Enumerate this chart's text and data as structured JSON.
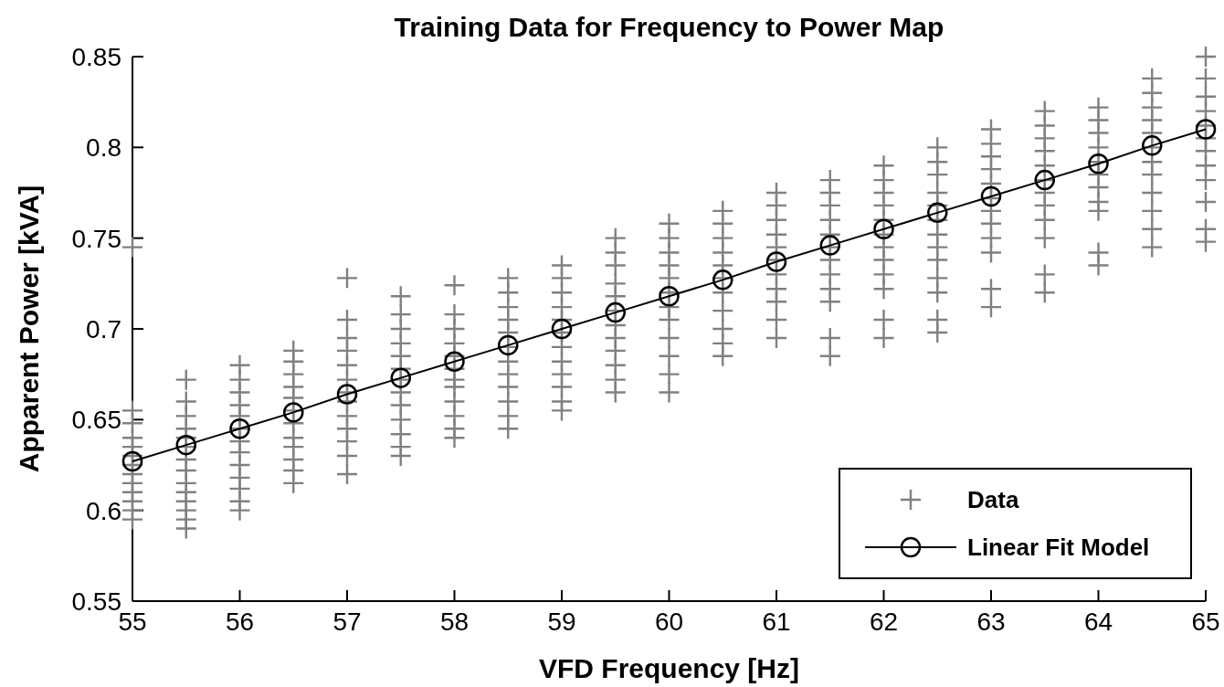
{
  "chart_data": {
    "type": "scatter",
    "title": "Training Data for Frequency to Power Map",
    "xlabel": "VFD Frequency [Hz]",
    "ylabel": "Apparent Power [kVA]",
    "xlim": [
      55,
      65
    ],
    "xticks": [
      55,
      56,
      57,
      58,
      59,
      60,
      61,
      62,
      63,
      64,
      65
    ],
    "ylim": [
      0.55,
      0.85
    ],
    "yticks": [
      0.55,
      0.6,
      0.65,
      0.7,
      0.75,
      0.8,
      0.85
    ],
    "grid": false,
    "legend": "bottom right",
    "series": [
      {
        "name": "Data",
        "marker": "cross",
        "color": "#808080",
        "x": [
          55,
          55,
          55,
          55,
          55,
          55,
          55,
          55,
          55,
          55,
          55,
          55,
          55,
          55.5,
          55.5,
          55.5,
          55.5,
          55.5,
          55.5,
          55.5,
          55.5,
          55.5,
          55.5,
          55.5,
          55.5,
          55.5,
          55.5,
          56,
          56,
          56,
          56,
          56,
          56,
          56,
          56,
          56,
          56,
          56,
          56,
          56,
          56.5,
          56.5,
          56.5,
          56.5,
          56.5,
          56.5,
          56.5,
          56.5,
          56.5,
          56.5,
          56.5,
          56.5,
          57,
          57,
          57,
          57,
          57,
          57,
          57,
          57,
          57,
          57,
          57,
          57,
          57,
          57.5,
          57.5,
          57.5,
          57.5,
          57.5,
          57.5,
          57.5,
          57.5,
          57.5,
          57.5,
          57.5,
          57.5,
          57.5,
          58,
          58,
          58,
          58,
          58,
          58,
          58,
          58,
          58,
          58,
          58,
          58,
          58.5,
          58.5,
          58.5,
          58.5,
          58.5,
          58.5,
          58.5,
          58.5,
          58.5,
          58.5,
          58.5,
          58.5,
          59,
          59,
          59,
          59,
          59,
          59,
          59,
          59,
          59,
          59,
          59,
          59,
          59.5,
          59.5,
          59.5,
          59.5,
          59.5,
          59.5,
          59.5,
          59.5,
          59.5,
          59.5,
          59.5,
          59.5,
          60,
          60,
          60,
          60,
          60,
          60,
          60,
          60,
          60,
          60,
          60,
          60,
          60.5,
          60.5,
          60.5,
          60.5,
          60.5,
          60.5,
          60.5,
          60.5,
          60.5,
          60.5,
          60.5,
          61,
          61,
          61,
          61,
          61,
          61,
          61,
          61,
          61,
          61,
          61,
          61.5,
          61.5,
          61.5,
          61.5,
          61.5,
          61.5,
          61.5,
          61.5,
          61.5,
          61.5,
          61.5,
          61.5,
          62,
          62,
          62,
          62,
          62,
          62,
          62,
          62,
          62,
          62,
          62,
          62,
          62.5,
          62.5,
          62.5,
          62.5,
          62.5,
          62.5,
          62.5,
          62.5,
          62.5,
          62.5,
          62.5,
          62.5,
          62.5,
          63,
          63,
          63,
          63,
          63,
          63,
          63,
          63,
          63,
          63,
          63,
          63,
          63.5,
          63.5,
          63.5,
          63.5,
          63.5,
          63.5,
          63.5,
          63.5,
          63.5,
          63.5,
          63.5,
          63.5,
          64,
          64,
          64,
          64,
          64,
          64,
          64,
          64,
          64,
          64,
          64,
          64.5,
          64.5,
          64.5,
          64.5,
          64.5,
          64.5,
          64.5,
          64.5,
          64.5,
          64.5,
          64.5,
          64.5,
          65,
          65,
          65,
          65,
          65,
          65,
          65,
          65,
          65,
          65,
          65,
          65
        ],
        "values": [
          0.745,
          0.655,
          0.648,
          0.64,
          0.635,
          0.63,
          0.625,
          0.62,
          0.615,
          0.61,
          0.605,
          0.6,
          0.595,
          0.672,
          0.66,
          0.652,
          0.645,
          0.64,
          0.635,
          0.628,
          0.622,
          0.615,
          0.61,
          0.605,
          0.6,
          0.595,
          0.59,
          0.68,
          0.672,
          0.665,
          0.658,
          0.652,
          0.645,
          0.638,
          0.632,
          0.625,
          0.618,
          0.612,
          0.605,
          0.6,
          0.688,
          0.682,
          0.675,
          0.668,
          0.662,
          0.655,
          0.648,
          0.64,
          0.635,
          0.628,
          0.622,
          0.615,
          0.728,
          0.705,
          0.695,
          0.688,
          0.68,
          0.672,
          0.665,
          0.66,
          0.652,
          0.645,
          0.638,
          0.63,
          0.62,
          0.718,
          0.708,
          0.7,
          0.692,
          0.685,
          0.678,
          0.672,
          0.665,
          0.658,
          0.65,
          0.642,
          0.635,
          0.63,
          0.724,
          0.708,
          0.7,
          0.692,
          0.685,
          0.678,
          0.672,
          0.668,
          0.66,
          0.652,
          0.645,
          0.64,
          0.728,
          0.72,
          0.712,
          0.705,
          0.698,
          0.69,
          0.682,
          0.675,
          0.668,
          0.66,
          0.652,
          0.645,
          0.735,
          0.728,
          0.72,
          0.712,
          0.705,
          0.698,
          0.69,
          0.682,
          0.675,
          0.668,
          0.66,
          0.655,
          0.75,
          0.742,
          0.735,
          0.725,
          0.718,
          0.71,
          0.702,
          0.695,
          0.688,
          0.68,
          0.672,
          0.665,
          0.758,
          0.75,
          0.742,
          0.735,
          0.728,
          0.72,
          0.712,
          0.705,
          0.695,
          0.685,
          0.675,
          0.665,
          0.765,
          0.758,
          0.75,
          0.742,
          0.735,
          0.728,
          0.72,
          0.71,
          0.7,
          0.692,
          0.685,
          0.775,
          0.768,
          0.76,
          0.752,
          0.745,
          0.738,
          0.73,
          0.722,
          0.715,
          0.705,
          0.695,
          0.782,
          0.775,
          0.768,
          0.76,
          0.752,
          0.745,
          0.738,
          0.73,
          0.722,
          0.715,
          0.695,
          0.685,
          0.79,
          0.782,
          0.775,
          0.768,
          0.76,
          0.752,
          0.745,
          0.738,
          0.73,
          0.722,
          0.705,
          0.695,
          0.8,
          0.792,
          0.785,
          0.775,
          0.768,
          0.76,
          0.752,
          0.745,
          0.738,
          0.728,
          0.72,
          0.705,
          0.698,
          0.81,
          0.802,
          0.795,
          0.788,
          0.78,
          0.772,
          0.765,
          0.758,
          0.75,
          0.742,
          0.722,
          0.712,
          0.82,
          0.812,
          0.805,
          0.798,
          0.79,
          0.782,
          0.775,
          0.768,
          0.76,
          0.75,
          0.73,
          0.72,
          0.822,
          0.815,
          0.808,
          0.8,
          0.792,
          0.785,
          0.778,
          0.77,
          0.765,
          0.742,
          0.735,
          0.838,
          0.83,
          0.822,
          0.815,
          0.808,
          0.8,
          0.792,
          0.785,
          0.775,
          0.765,
          0.755,
          0.745,
          0.85,
          0.838,
          0.828,
          0.82,
          0.812,
          0.805,
          0.798,
          0.79,
          0.782,
          0.77,
          0.755,
          0.748
        ]
      },
      {
        "name": "Linear Fit Model",
        "type": "line",
        "marker": "circle",
        "color": "#000000",
        "x": [
          55,
          55.5,
          56,
          56.5,
          57,
          57.5,
          58,
          58.5,
          59,
          59.5,
          60,
          60.5,
          61,
          61.5,
          62,
          62.5,
          63,
          63.5,
          64,
          64.5,
          65
        ],
        "values": [
          0.627,
          0.636,
          0.645,
          0.654,
          0.664,
          0.673,
          0.682,
          0.691,
          0.7,
          0.709,
          0.718,
          0.727,
          0.737,
          0.746,
          0.755,
          0.764,
          0.773,
          0.782,
          0.791,
          0.801,
          0.81
        ]
      }
    ]
  }
}
